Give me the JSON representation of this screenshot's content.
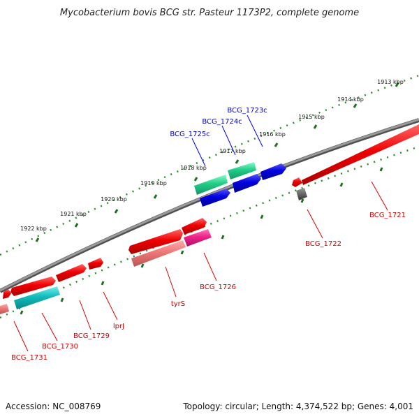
{
  "title": "Mycobacterium bovis BCG str. Pasteur 1173P2, complete genome",
  "footer": {
    "accession": "Accession: NC_008769",
    "summary": "Topology: circular; Length: 4,374,522 bp; Genes: 4,001"
  },
  "kbp_ticks": [
    "1913 kbp",
    "1914 kbp",
    "1915 kbp",
    "1916 kbp",
    "1917 kbp",
    "1918 kbp",
    "1919 kbp",
    "1920 kbp",
    "1921 kbp",
    "1922 kbp"
  ],
  "genes_reverse": [
    "BCG_1725c",
    "BCG_1724c",
    "BCG_1723c"
  ],
  "genes_forward": [
    "BCG_1721",
    "BCG_1722",
    "BCG_1726",
    "tyrS",
    "lprJ",
    "BCG_1729",
    "BCG_1730",
    "BCG_1731"
  ],
  "colors": {
    "backbone": "#808080",
    "tick_green": "#2e8b2e",
    "gene_red": "#ee0000",
    "gene_blue": "#0000dd",
    "feature_green": "#22cc88",
    "feature_cyan": "#11bbbb",
    "feature_pink": "#ee2288",
    "feature_salmon": "#ee7777",
    "feature_gray": "#666666",
    "label_blue": "#0000aa",
    "label_red": "#cc0000"
  }
}
